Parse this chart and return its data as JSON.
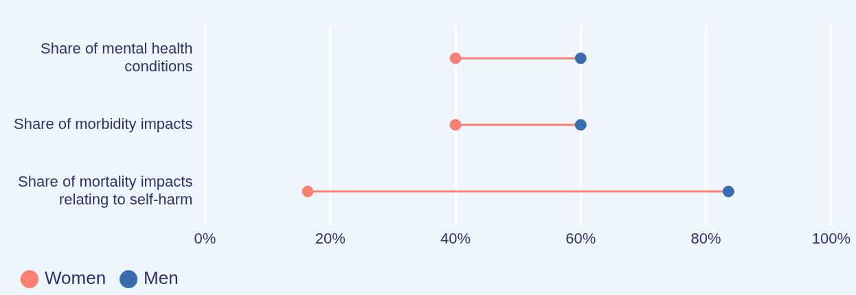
{
  "chart_data": {
    "type": "scatter",
    "orientation": "horizontal",
    "categories": [
      "Share of mental health conditions",
      "Share of morbidity impacts",
      "Share of mortality impacts relating to self-harm"
    ],
    "series": [
      {
        "name": "Women",
        "color": "#fa8072",
        "values": [
          40,
          40,
          16.4
        ]
      },
      {
        "name": "Men",
        "color": "#3a6db0",
        "values": [
          60,
          60,
          83.6
        ]
      }
    ],
    "xlim": [
      0,
      100
    ],
    "xticks": [
      {
        "value": 0,
        "label": "0%"
      },
      {
        "value": 20,
        "label": "20%"
      },
      {
        "value": 40,
        "label": "40%"
      },
      {
        "value": 60,
        "label": "60%"
      },
      {
        "value": 80,
        "label": "80%"
      },
      {
        "value": 100,
        "label": "100%"
      }
    ],
    "grid": "x",
    "legend": "bottom left",
    "marker": "circle"
  }
}
